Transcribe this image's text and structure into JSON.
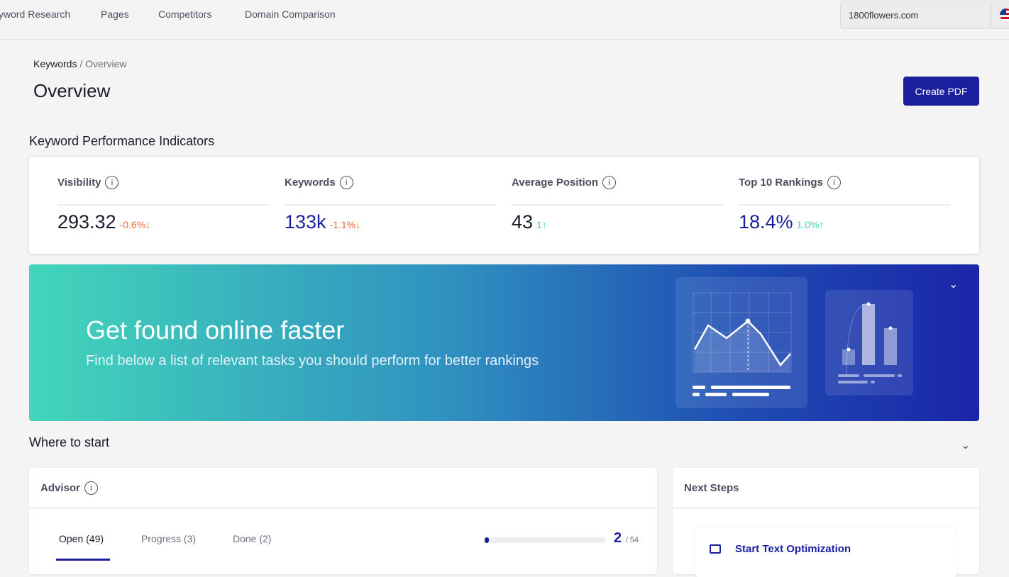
{
  "nav": {
    "items": [
      "yword Research",
      "Pages",
      "Competitors",
      "Domain Comparison"
    ],
    "domain": "1800flowers.com"
  },
  "breadcrumb": {
    "parent": "Keywords",
    "sep": "/",
    "current": "Overview"
  },
  "page_title": "Overview",
  "create_pdf": "Create PDF",
  "kpi_title": "Keyword Performance Indicators",
  "kpis": [
    {
      "label": "Visibility",
      "value": "293.32",
      "change": "-0.6%↓",
      "value_color": "#1b1b2b",
      "change_color": "#f26b3a"
    },
    {
      "label": "Keywords",
      "value": "133k",
      "change": "-1.1%↓",
      "value_color": "#1a1f9e",
      "change_color": "#f26b3a"
    },
    {
      "label": "Average Position",
      "value": "43",
      "change": "1↑",
      "value_color": "#1b1b2b",
      "change_color": "#3fd6b5"
    },
    {
      "label": "Top 10 Rankings",
      "value": "18.4%",
      "change": "1.0%↑",
      "value_color": "#1a1f9e",
      "change_color": "#3fd6b5"
    }
  ],
  "banner": {
    "title": "Get found online faster",
    "subtitle": "Find below a list of relevant tasks you should perform for better rankings"
  },
  "where_to_start": "Where to start",
  "advisor": {
    "title": "Advisor",
    "tabs": [
      "Open (49)",
      "Progress (3)",
      "Done (2)"
    ],
    "done": "2",
    "total": "/ 54",
    "progress_fraction": 0.037
  },
  "next_steps": {
    "title": "Next Steps",
    "item": "Start Text Optimization"
  }
}
